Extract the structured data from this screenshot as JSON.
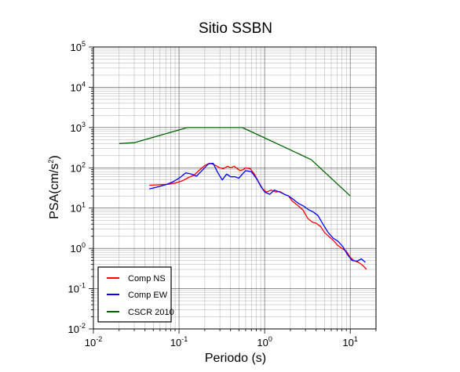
{
  "chart_data": {
    "type": "line",
    "title": "Sitio SSBN",
    "xlabel": "Periodo (s)",
    "ylabel": "PSA(cm/s²)",
    "ylabel_parts": {
      "main": "PSA(cm/s",
      "sup": "2",
      "close": ")"
    },
    "x_scale": "log",
    "y_scale": "log",
    "xlim": [
      0.01,
      20
    ],
    "ylim": [
      0.01,
      100000
    ],
    "grid": true,
    "legend_position": "bottom-left",
    "x_ticks": [
      {
        "base": "10",
        "exp": "-2",
        "value": 0.01
      },
      {
        "base": "10",
        "exp": "-1",
        "value": 0.1
      },
      {
        "base": "10",
        "exp": "0",
        "value": 1
      },
      {
        "base": "10",
        "exp": "1",
        "value": 10
      }
    ],
    "y_ticks": [
      {
        "base": "10",
        "exp": "5",
        "value": 100000
      },
      {
        "base": "10",
        "exp": "4",
        "value": 10000
      },
      {
        "base": "10",
        "exp": "3",
        "value": 1000
      },
      {
        "base": "10",
        "exp": "2",
        "value": 100
      },
      {
        "base": "10",
        "exp": "1",
        "value": 10
      },
      {
        "base": "10",
        "exp": "0",
        "value": 1
      },
      {
        "base": "10",
        "exp": "-1",
        "value": 0.1
      },
      {
        "base": "10",
        "exp": "-2",
        "value": 0.01
      }
    ],
    "series": [
      {
        "name": "Comp NS",
        "color": "#ff0000",
        "x": [
          0.045,
          0.06,
          0.075,
          0.09,
          0.11,
          0.13,
          0.15,
          0.17,
          0.2,
          0.23,
          0.26,
          0.3,
          0.33,
          0.37,
          0.4,
          0.44,
          0.48,
          0.52,
          0.56,
          0.6,
          0.68,
          0.76,
          0.85,
          0.95,
          1.05,
          1.2,
          1.35,
          1.5,
          1.7,
          1.9,
          2.1,
          2.4,
          2.8,
          3.2,
          3.6,
          4.0,
          4.5,
          5.0,
          5.6,
          6.3,
          7.1,
          8.0,
          9.0,
          10.0,
          11.0,
          12.5,
          14.0,
          15.5
        ],
        "y": [
          37,
          38,
          39,
          42,
          48,
          58,
          66,
          85,
          115,
          130,
          118,
          100,
          95,
          110,
          100,
          110,
          95,
          85,
          90,
          100,
          95,
          70,
          45,
          30,
          25,
          28,
          25,
          26,
          22,
          20,
          15,
          12,
          9,
          5.5,
          4.5,
          4.2,
          3.5,
          2.5,
          2.0,
          1.6,
          1.2,
          1.0,
          0.85,
          0.6,
          0.5,
          0.45,
          0.38,
          0.3
        ]
      },
      {
        "name": "Comp EW",
        "color": "#0000ff",
        "x": [
          0.045,
          0.055,
          0.07,
          0.085,
          0.1,
          0.12,
          0.14,
          0.16,
          0.19,
          0.22,
          0.25,
          0.28,
          0.32,
          0.36,
          0.4,
          0.45,
          0.5,
          0.55,
          0.6,
          0.7,
          0.8,
          0.9,
          1.0,
          1.15,
          1.3,
          1.5,
          1.7,
          1.9,
          2.2,
          2.5,
          2.9,
          3.3,
          3.7,
          4.2,
          4.8,
          5.5,
          6.3,
          7.2,
          8.2,
          9.3,
          10.5,
          12.0,
          13.5,
          15.0
        ],
        "y": [
          30,
          33,
          38,
          45,
          55,
          75,
          70,
          62,
          90,
          125,
          130,
          80,
          50,
          70,
          60,
          60,
          55,
          70,
          85,
          80,
          55,
          35,
          25,
          22,
          28,
          25,
          22,
          20,
          16,
          13,
          11,
          9,
          8,
          6.5,
          4,
          2.5,
          1.8,
          1.5,
          1.1,
          0.7,
          0.5,
          0.48,
          0.55,
          0.45
        ]
      },
      {
        "name": "CSCR 2010",
        "color": "#006400",
        "x": [
          0.02,
          0.03,
          0.125,
          0.55,
          3.5,
          10.0
        ],
        "y": [
          400,
          420,
          1000,
          1000,
          160,
          20
        ]
      }
    ]
  }
}
